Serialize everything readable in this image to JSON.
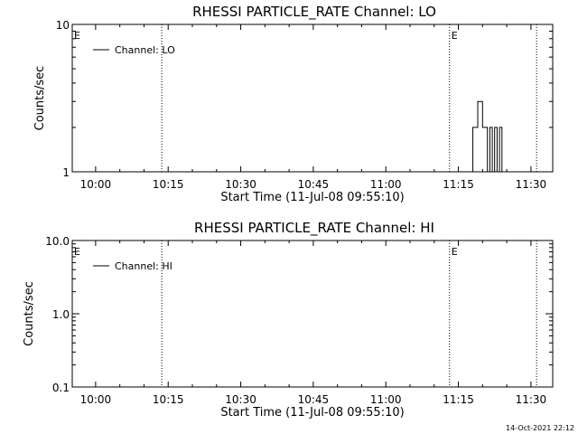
{
  "footer": {
    "timestamp": "14-Oct-2021 22:12"
  },
  "chart_data": [
    {
      "type": "line",
      "title": "RHESSI PARTICLE_RATE Channel: LO",
      "xlabel": "Start Time (11-Jul-08 09:55:10)",
      "ylabel": "Counts/sec",
      "yscale": "log",
      "ylim": [
        1,
        10
      ],
      "xlim": [
        "09:55:10",
        "11:34:30"
      ],
      "x_ticks": [
        "10:00",
        "10:15",
        "10:30",
        "10:45",
        "11:00",
        "11:15",
        "11:30"
      ],
      "y_ticks": [
        "1",
        "10"
      ],
      "legend": {
        "placement": "top-left",
        "entries": [
          "Channel: LO"
        ]
      },
      "markers": [
        {
          "label": "E",
          "time": "09:55:10",
          "dotted": false
        },
        {
          "label": "",
          "time": "10:13:40",
          "dotted": true
        },
        {
          "label": "E",
          "time": "11:13:10",
          "dotted": true
        },
        {
          "label": "",
          "time": "11:31:10",
          "dotted": true
        }
      ],
      "series": [
        {
          "name": "Channel: LO",
          "x": [
            "11:17:30",
            "11:18:00",
            "11:18:30",
            "11:19:00",
            "11:19:30",
            "11:20:00",
            "11:20:30",
            "11:21:00",
            "11:21:30",
            "11:22:00",
            "11:22:30",
            "11:23:00",
            "11:23:30",
            "11:24:00"
          ],
          "values": [
            1,
            2,
            2,
            3,
            3,
            2,
            2,
            1,
            2,
            1,
            2,
            1,
            2,
            1
          ]
        }
      ]
    },
    {
      "type": "line",
      "title": "RHESSI PARTICLE_RATE Channel: HI",
      "xlabel": "Start Time (11-Jul-08 09:55:10)",
      "ylabel": "Counts/sec",
      "yscale": "log",
      "ylim": [
        0.1,
        10
      ],
      "xlim": [
        "09:55:10",
        "11:34:30"
      ],
      "x_ticks": [
        "10:00",
        "10:15",
        "10:30",
        "10:45",
        "11:00",
        "11:15",
        "11:30"
      ],
      "y_ticks": [
        "0.1",
        "1.0",
        "10.0"
      ],
      "legend": {
        "placement": "top-left",
        "entries": [
          "Channel: HI"
        ]
      },
      "markers": [
        {
          "label": "E",
          "time": "09:55:10",
          "dotted": false
        },
        {
          "label": "",
          "time": "10:13:40",
          "dotted": true
        },
        {
          "label": "E",
          "time": "11:13:10",
          "dotted": true
        },
        {
          "label": "",
          "time": "11:31:10",
          "dotted": true
        }
      ],
      "series": [
        {
          "name": "Channel: HI",
          "x": [],
          "values": []
        }
      ]
    }
  ]
}
